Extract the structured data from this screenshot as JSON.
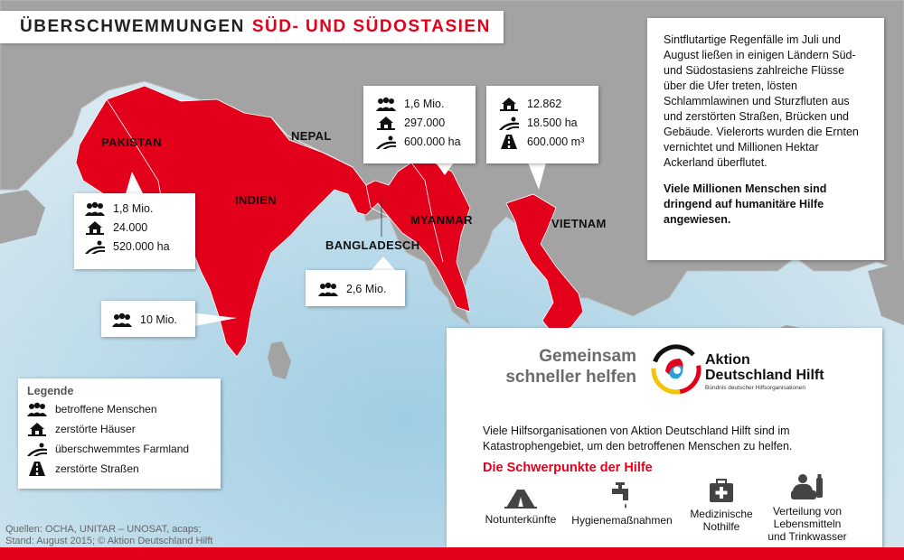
{
  "title": {
    "part1": "ÜBERSCHWEMMUNGEN",
    "part2": "SÜD- UND SÜDOSTASIEN"
  },
  "countries": {
    "pakistan": "PAKISTAN",
    "indien": "INDIEN",
    "nepal": "NEPAL",
    "bangladesch": "BANGLADESCH",
    "myanmar": "MYANMAR",
    "vietnam": "VIETNAM"
  },
  "callouts": {
    "pakistan": {
      "people": "1,8 Mio.",
      "houses": "24.000",
      "farmland": "520.000 ha"
    },
    "myanmar": {
      "people": "1,6 Mio.",
      "houses": "297.000",
      "farmland": "600.000 ha"
    },
    "vietnam": {
      "houses": "12.862",
      "farmland": "18.500 ha",
      "roads": "600.000 m³"
    },
    "bangladesch": {
      "people": "2,6 Mio."
    },
    "indien": {
      "people": "10 Mio."
    }
  },
  "info": {
    "paragraph1": "Sintflutartige Regenfälle im Juli und August ließen in einigen Ländern Süd- und Südostasiens zahlreiche Flüsse über die Ufer treten, lösten Schlammlawinen und Sturzfluten aus und zerstörten Straßen, Brücken und Gebäude. Vielerorts wurden die Ernten vernichtet und Millionen Hektar Ackerland überflutet.",
    "paragraph2": "Viele Millionen Menschen sind dringend auf humanitäre Hilfe angewiesen."
  },
  "legend": {
    "heading": "Legende",
    "people": "betroffene Menschen",
    "houses": "zerstörte Häuser",
    "farmland": "überschwemmtes Farmland",
    "roads": "zerstörte Straßen"
  },
  "sources": {
    "line1": "Quellen: OCHA, UNITAR – UNOSAT, acaps;",
    "line2": "Stand: August 2015; © Aktion Deutschland Hilft"
  },
  "help": {
    "slogan_line1": "Gemeinsam",
    "slogan_line2": "schneller helfen",
    "logo_line1": "Aktion",
    "logo_line2": "Deutschland Hilft",
    "logo_tagline": "Bündnis deutscher Hilfsorganisationen",
    "description": "Viele Hilfsorganisationen von Aktion Deutschland Hilft sind im Katastrophengebiet, um den betroffenen Menschen zu helfen.",
    "heading": "Die Schwerpunkte der Hilfe",
    "aid_shelter": "Notunterkünfte",
    "aid_hygiene": "Hygienemaßnahmen",
    "aid_medical_line1": "Medizinische",
    "aid_medical_line2": "Nothilfe",
    "aid_food_line1": "Verteilung von",
    "aid_food_line2": "Lebensmitteln",
    "aid_food_line3": "und Trinkwasser"
  },
  "colors": {
    "accent": "#e3001b",
    "land": "#9c9c9c",
    "sea": "#c7dfe9",
    "text_grey": "#6b6b6b"
  }
}
